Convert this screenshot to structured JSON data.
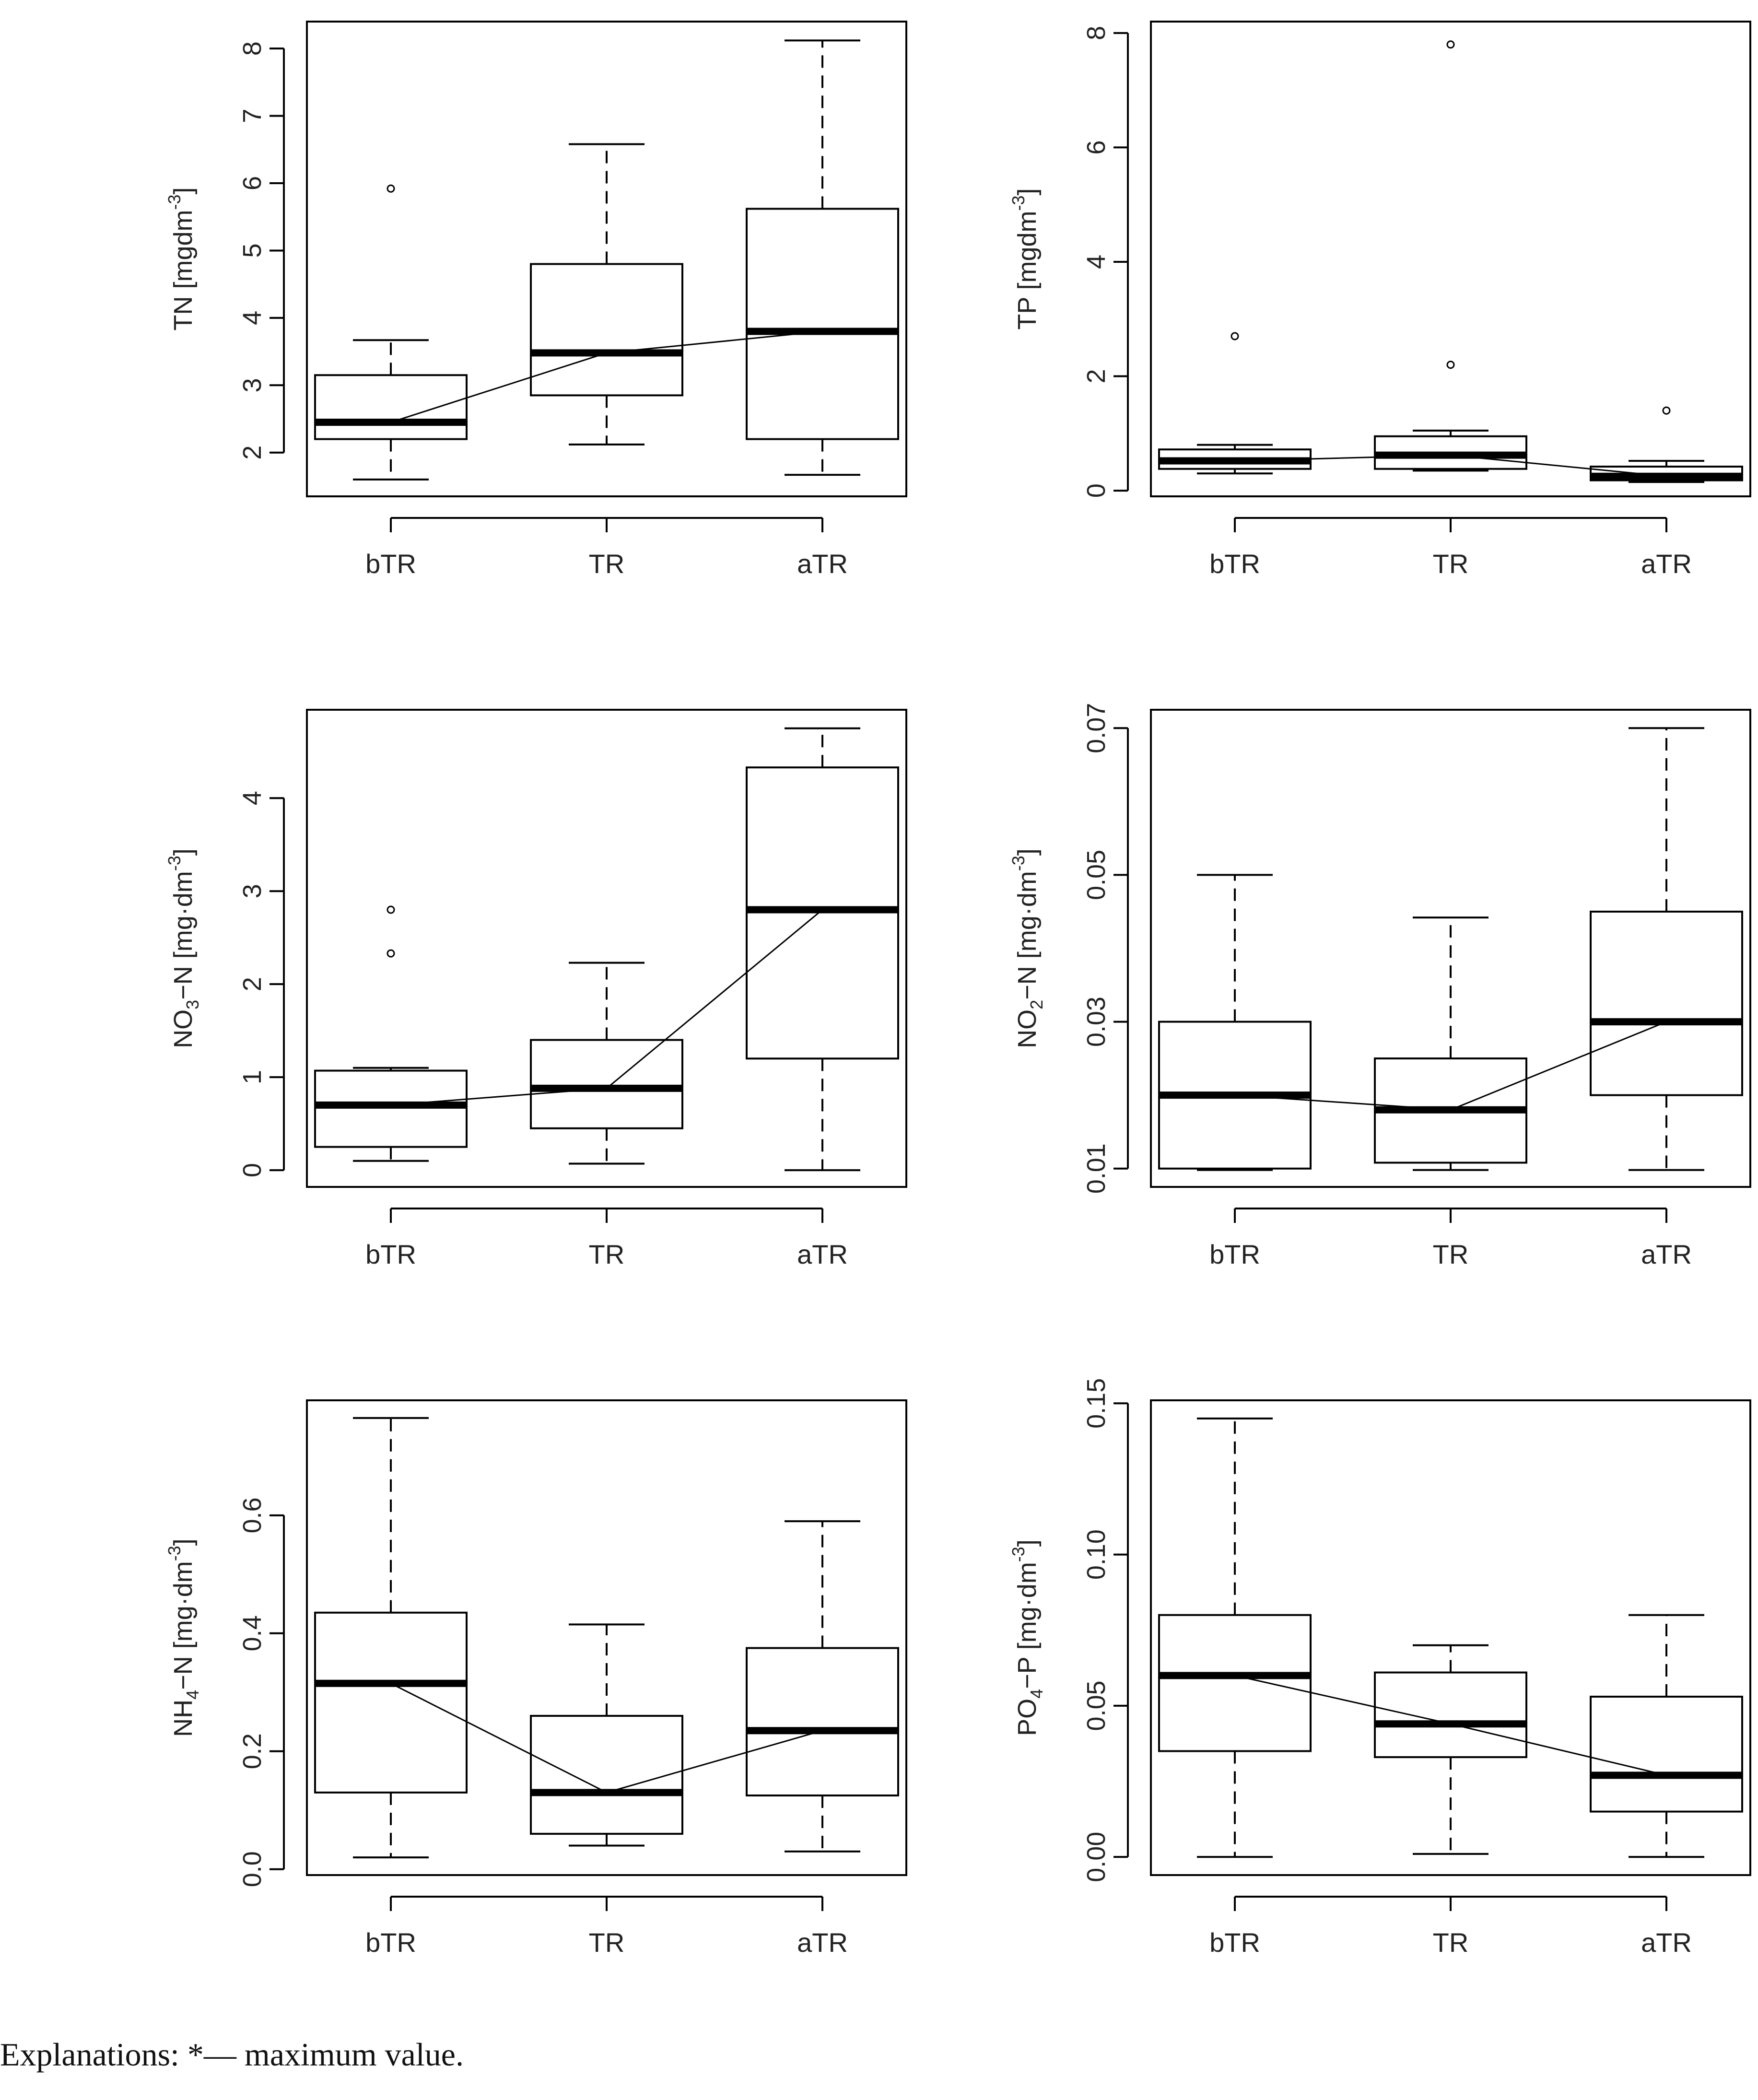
{
  "caption": "Explanations: *— maximum value.",
  "chart_data": [
    {
      "type": "box",
      "ylabel": {
        "main": "TN",
        "sub": "",
        "unit": "[mgdm",
        "sup": "-3",
        "close": "]"
      },
      "categories": [
        "bTR",
        "TR",
        "aTR"
      ],
      "ylim": [
        1.35,
        8.4
      ],
      "yticks": [
        2,
        3,
        4,
        5,
        6,
        7,
        8
      ],
      "tick_labels": [
        "2",
        "3",
        "4",
        "5",
        "6",
        "7",
        "8"
      ],
      "boxes": [
        {
          "category": "bTR",
          "whisker_low": 1.6,
          "q1": 2.2,
          "median": 2.45,
          "q3": 3.15,
          "whisker_high": 3.67,
          "outliers": [
            5.92
          ]
        },
        {
          "category": "TR",
          "whisker_low": 2.12,
          "q1": 2.85,
          "median": 3.48,
          "q3": 4.8,
          "whisker_high": 6.58,
          "outliers": []
        },
        {
          "category": "aTR",
          "whisker_low": 1.67,
          "q1": 2.2,
          "median": 3.8,
          "q3": 5.62,
          "whisker_high": 8.12,
          "outliers": []
        }
      ]
    },
    {
      "type": "box",
      "ylabel": {
        "main": "TP",
        "sub": "",
        "unit": "[mgdm",
        "sup": "-3",
        "close": "]"
      },
      "categories": [
        "bTR",
        "TR",
        "aTR"
      ],
      "ylim": [
        -0.1,
        8.2
      ],
      "yticks": [
        0,
        2,
        4,
        6,
        8
      ],
      "tick_labels": [
        "0",
        "2",
        "4",
        "6",
        "8"
      ],
      "boxes": [
        {
          "category": "bTR",
          "whisker_low": 0.3,
          "q1": 0.38,
          "median": 0.52,
          "q3": 0.72,
          "whisker_high": 0.8,
          "outliers": [
            2.7
          ]
        },
        {
          "category": "TR",
          "whisker_low": 0.35,
          "q1": 0.38,
          "median": 0.62,
          "q3": 0.95,
          "whisker_high": 1.05,
          "outliers": [
            2.2,
            7.8
          ]
        },
        {
          "category": "aTR",
          "whisker_low": 0.15,
          "q1": 0.18,
          "median": 0.25,
          "q3": 0.42,
          "whisker_high": 0.52,
          "outliers": [
            1.4
          ]
        }
      ]
    },
    {
      "type": "box",
      "ylabel": {
        "main": "NO",
        "sub": "3",
        "unit": "−N [mg·dm",
        "sup": "-3",
        "close": "]"
      },
      "categories": [
        "bTR",
        "TR",
        "aTR"
      ],
      "ylim": [
        -0.18,
        4.95
      ],
      "yticks": [
        0,
        1,
        2,
        3,
        4
      ],
      "tick_labels": [
        "0",
        "1",
        "2",
        "3",
        "4"
      ],
      "boxes": [
        {
          "category": "bTR",
          "whisker_low": 0.1,
          "q1": 0.25,
          "median": 0.7,
          "q3": 1.07,
          "whisker_high": 1.1,
          "outliers": [
            2.33,
            2.8
          ]
        },
        {
          "category": "TR",
          "whisker_low": 0.07,
          "q1": 0.45,
          "median": 0.88,
          "q3": 1.4,
          "whisker_high": 2.23,
          "outliers": []
        },
        {
          "category": "aTR",
          "whisker_low": 0.0,
          "q1": 1.2,
          "median": 2.8,
          "q3": 4.33,
          "whisker_high": 4.75,
          "outliers": []
        }
      ]
    },
    {
      "type": "box",
      "ylabel": {
        "main": "NO",
        "sub": "2",
        "unit": "−N [mg·dm",
        "sup": "-3",
        "close": "]"
      },
      "categories": [
        "bTR",
        "TR",
        "aTR"
      ],
      "ylim": [
        0.0075,
        0.0725
      ],
      "yticks": [
        0.01,
        0.03,
        0.05,
        0.07
      ],
      "tick_labels": [
        "0.01",
        "0.03",
        "0.05",
        "0.07"
      ],
      "boxes": [
        {
          "category": "bTR",
          "whisker_low": 0.0098,
          "q1": 0.01,
          "median": 0.02,
          "q3": 0.03,
          "whisker_high": 0.05,
          "outliers": []
        },
        {
          "category": "TR",
          "whisker_low": 0.0098,
          "q1": 0.0108,
          "median": 0.018,
          "q3": 0.025,
          "whisker_high": 0.0442,
          "outliers": []
        },
        {
          "category": "aTR",
          "whisker_low": 0.0098,
          "q1": 0.02,
          "median": 0.03,
          "q3": 0.045,
          "whisker_high": 0.07,
          "outliers": []
        }
      ]
    },
    {
      "type": "box",
      "ylabel": {
        "main": "NH",
        "sub": "4",
        "unit": "−N [mg·dm",
        "sup": "-3",
        "close": "]"
      },
      "categories": [
        "bTR",
        "TR",
        "aTR"
      ],
      "ylim": [
        -0.01,
        0.795
      ],
      "yticks": [
        0.0,
        0.2,
        0.4,
        0.6
      ],
      "tick_labels": [
        "0.0",
        "0.2",
        "0.4",
        "0.6"
      ],
      "boxes": [
        {
          "category": "bTR",
          "whisker_low": 0.02,
          "q1": 0.13,
          "median": 0.315,
          "q3": 0.435,
          "whisker_high": 0.765,
          "outliers": []
        },
        {
          "category": "TR",
          "whisker_low": 0.04,
          "q1": 0.06,
          "median": 0.13,
          "q3": 0.26,
          "whisker_high": 0.415,
          "outliers": []
        },
        {
          "category": "aTR",
          "whisker_low": 0.03,
          "q1": 0.125,
          "median": 0.235,
          "q3": 0.375,
          "whisker_high": 0.59,
          "outliers": []
        }
      ]
    },
    {
      "type": "box",
      "ylabel": {
        "main": "PO",
        "sub": "4",
        "unit": "−P [mg·dm",
        "sup": "-3",
        "close": "]"
      },
      "categories": [
        "bTR",
        "TR",
        "aTR"
      ],
      "ylim": [
        -0.006,
        0.151
      ],
      "yticks": [
        0.0,
        0.05,
        0.1,
        0.15
      ],
      "tick_labels": [
        "0.00",
        "0.05",
        "0.10",
        "0.15"
      ],
      "boxes": [
        {
          "category": "bTR",
          "whisker_low": 0.0,
          "q1": 0.035,
          "median": 0.06,
          "q3": 0.08,
          "whisker_high": 0.145,
          "outliers": []
        },
        {
          "category": "TR",
          "whisker_low": 0.001,
          "q1": 0.033,
          "median": 0.044,
          "q3": 0.061,
          "whisker_high": 0.07,
          "outliers": []
        },
        {
          "category": "aTR",
          "whisker_low": 0.0,
          "q1": 0.015,
          "median": 0.027,
          "q3": 0.053,
          "whisker_high": 0.08,
          "outliers": []
        }
      ]
    }
  ]
}
